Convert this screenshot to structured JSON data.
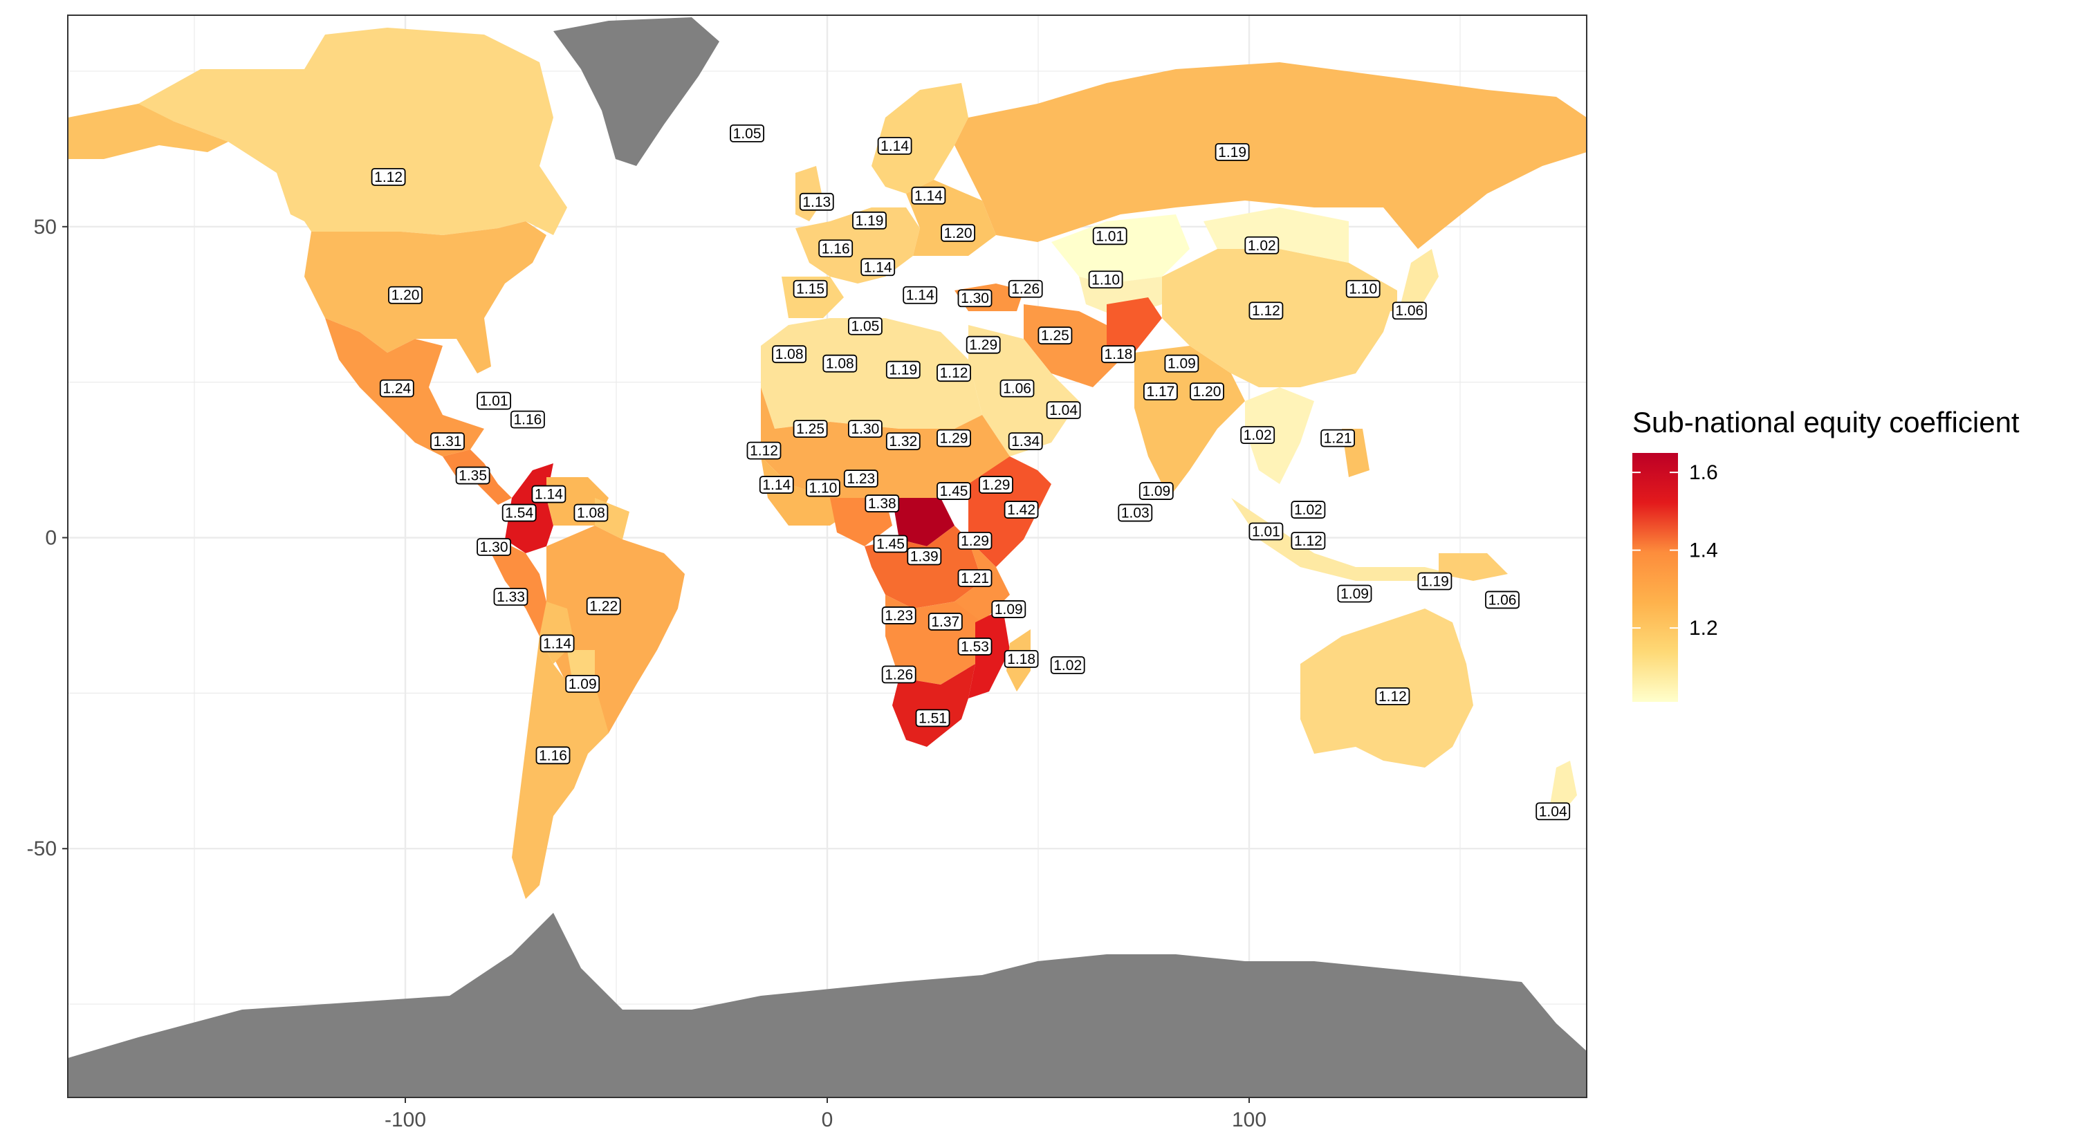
{
  "chart_data": {
    "type": "choropleth",
    "title": "",
    "xlabel": "",
    "ylabel": "",
    "xlim": [
      -180,
      180
    ],
    "ylim": [
      -90,
      84
    ],
    "x_ticks": [
      -100,
      0,
      100
    ],
    "y_ticks": [
      -50,
      0,
      50
    ],
    "x_tick_labels": [
      "-100",
      "0",
      "100"
    ],
    "y_tick_labels": [
      "-50",
      "0",
      "50"
    ],
    "grid": true,
    "legend": {
      "title": "Sub-national equity coefficient",
      "placement": "right",
      "ticks": [
        1.2,
        1.4,
        1.6
      ],
      "tick_labels": [
        "1.2",
        "1.4",
        "1.6"
      ],
      "range": [
        1.01,
        1.65
      ],
      "colors": [
        "#ffffcc",
        "#fed976",
        "#feb24c",
        "#fd8d3c",
        "#fc4e2a",
        "#e31a1c",
        "#bd0026"
      ]
    },
    "no_data_color": "#808080",
    "labels": [
      {
        "lon": -104,
        "lat": 58,
        "text": "1.12"
      },
      {
        "lon": -100,
        "lat": 39,
        "text": "1.20"
      },
      {
        "lon": -102,
        "lat": 24,
        "text": "1.24"
      },
      {
        "lon": -79,
        "lat": 22,
        "text": "1.01"
      },
      {
        "lon": -71,
        "lat": 19,
        "text": "1.16"
      },
      {
        "lon": -90,
        "lat": 15.5,
        "text": "1.31"
      },
      {
        "lon": -84,
        "lat": 10,
        "text": "1.35"
      },
      {
        "lon": -66,
        "lat": 7,
        "text": "1.14"
      },
      {
        "lon": -73,
        "lat": 4,
        "text": "1.54"
      },
      {
        "lon": -56,
        "lat": 4,
        "text": "1.08"
      },
      {
        "lon": -79,
        "lat": -1.5,
        "text": "1.30"
      },
      {
        "lon": -75,
        "lat": -9.5,
        "text": "1.33"
      },
      {
        "lon": -53,
        "lat": -11,
        "text": "1.22"
      },
      {
        "lon": -64,
        "lat": -17,
        "text": "1.14"
      },
      {
        "lon": -58,
        "lat": -23.5,
        "text": "1.09"
      },
      {
        "lon": -65,
        "lat": -35,
        "text": "1.16"
      },
      {
        "lon": -19,
        "lat": 65,
        "text": "1.05"
      },
      {
        "lon": 16,
        "lat": 63,
        "text": "1.14"
      },
      {
        "lon": -2.5,
        "lat": 54,
        "text": "1.13"
      },
      {
        "lon": 24,
        "lat": 55,
        "text": "1.14"
      },
      {
        "lon": 10,
        "lat": 51,
        "text": "1.19"
      },
      {
        "lon": 31,
        "lat": 49,
        "text": "1.20"
      },
      {
        "lon": 2,
        "lat": 46.5,
        "text": "1.16"
      },
      {
        "lon": 12,
        "lat": 43.5,
        "text": "1.14"
      },
      {
        "lon": -4,
        "lat": 40,
        "text": "1.15"
      },
      {
        "lon": 22,
        "lat": 39,
        "text": "1.14"
      },
      {
        "lon": 35,
        "lat": 38.5,
        "text": "1.30"
      },
      {
        "lon": 47,
        "lat": 40,
        "text": "1.26"
      },
      {
        "lon": 66,
        "lat": 41.5,
        "text": "1.10"
      },
      {
        "lon": 67,
        "lat": 48.5,
        "text": "1.01"
      },
      {
        "lon": 96,
        "lat": 62,
        "text": "1.19"
      },
      {
        "lon": 103,
        "lat": 47,
        "text": "1.02"
      },
      {
        "lon": 127,
        "lat": 40,
        "text": "1.10"
      },
      {
        "lon": 138,
        "lat": 36.5,
        "text": "1.06"
      },
      {
        "lon": 104,
        "lat": 36.5,
        "text": "1.12"
      },
      {
        "lon": 9,
        "lat": 34,
        "text": "1.05"
      },
      {
        "lon": -9,
        "lat": 29.5,
        "text": "1.08"
      },
      {
        "lon": 3,
        "lat": 28,
        "text": "1.08"
      },
      {
        "lon": 18,
        "lat": 27,
        "text": "1.19"
      },
      {
        "lon": 30,
        "lat": 26.5,
        "text": "1.12"
      },
      {
        "lon": 37,
        "lat": 31,
        "text": "1.29"
      },
      {
        "lon": 54,
        "lat": 32.5,
        "text": "1.25"
      },
      {
        "lon": 69,
        "lat": 29.5,
        "text": "1.18"
      },
      {
        "lon": 84,
        "lat": 28,
        "text": "1.09"
      },
      {
        "lon": 45,
        "lat": 24,
        "text": "1.06"
      },
      {
        "lon": 56,
        "lat": 20.5,
        "text": "1.04"
      },
      {
        "lon": 79,
        "lat": 23.5,
        "text": "1.17"
      },
      {
        "lon": 90,
        "lat": 23.5,
        "text": "1.20"
      },
      {
        "lon": -15,
        "lat": 14,
        "text": "1.12"
      },
      {
        "lon": -4,
        "lat": 17.5,
        "text": "1.25"
      },
      {
        "lon": 9,
        "lat": 17.5,
        "text": "1.30"
      },
      {
        "lon": 18,
        "lat": 15.5,
        "text": "1.32"
      },
      {
        "lon": 30,
        "lat": 16,
        "text": "1.29"
      },
      {
        "lon": 47,
        "lat": 15.5,
        "text": "1.34"
      },
      {
        "lon": 102,
        "lat": 16.5,
        "text": "1.02"
      },
      {
        "lon": 121,
        "lat": 16,
        "text": "1.21"
      },
      {
        "lon": -12,
        "lat": 8.5,
        "text": "1.14"
      },
      {
        "lon": -1,
        "lat": 8,
        "text": "1.10"
      },
      {
        "lon": 8,
        "lat": 9.5,
        "text": "1.23"
      },
      {
        "lon": 13,
        "lat": 5.5,
        "text": "1.38"
      },
      {
        "lon": 30,
        "lat": 7.5,
        "text": "1.45"
      },
      {
        "lon": 40,
        "lat": 8.5,
        "text": "1.29"
      },
      {
        "lon": 46,
        "lat": 4.5,
        "text": "1.42"
      },
      {
        "lon": 78,
        "lat": 7.5,
        "text": "1.09"
      },
      {
        "lon": 73,
        "lat": 4,
        "text": "1.03"
      },
      {
        "lon": 114,
        "lat": 4.5,
        "text": "1.02"
      },
      {
        "lon": 104,
        "lat": 1,
        "text": "1.01"
      },
      {
        "lon": 114,
        "lat": -0.5,
        "text": "1.12"
      },
      {
        "lon": 15,
        "lat": -1,
        "text": "1.45"
      },
      {
        "lon": 23,
        "lat": -3,
        "text": "1.39"
      },
      {
        "lon": 35,
        "lat": -0.5,
        "text": "1.29"
      },
      {
        "lon": 35,
        "lat": -6.5,
        "text": "1.21"
      },
      {
        "lon": 125,
        "lat": -9,
        "text": "1.09"
      },
      {
        "lon": 144,
        "lat": -7,
        "text": "1.19"
      },
      {
        "lon": 160,
        "lat": -10,
        "text": "1.06"
      },
      {
        "lon": 17,
        "lat": -12.5,
        "text": "1.23"
      },
      {
        "lon": 28,
        "lat": -13.5,
        "text": "1.37"
      },
      {
        "lon": 43,
        "lat": -11.5,
        "text": "1.09"
      },
      {
        "lon": 35,
        "lat": -17.5,
        "text": "1.53"
      },
      {
        "lon": 46,
        "lat": -19.5,
        "text": "1.18"
      },
      {
        "lon": 57,
        "lat": -20.5,
        "text": "1.02"
      },
      {
        "lon": 17,
        "lat": -22,
        "text": "1.26"
      },
      {
        "lon": 25,
        "lat": -29,
        "text": "1.51"
      },
      {
        "lon": 134,
        "lat": -25.5,
        "text": "1.12"
      },
      {
        "lon": 172,
        "lat": -44,
        "text": "1.04"
      }
    ]
  }
}
